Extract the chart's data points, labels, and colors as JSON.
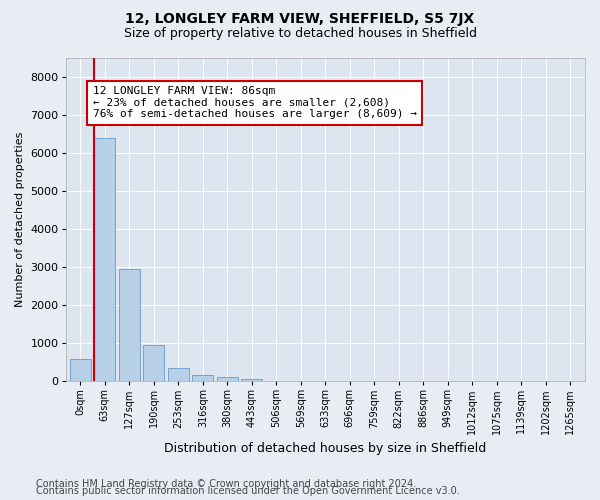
{
  "title": "12, LONGLEY FARM VIEW, SHEFFIELD, S5 7JX",
  "subtitle": "Size of property relative to detached houses in Sheffield",
  "xlabel": "Distribution of detached houses by size in Sheffield",
  "ylabel": "Number of detached properties",
  "categories": [
    "0sqm",
    "63sqm",
    "127sqm",
    "190sqm",
    "253sqm",
    "316sqm",
    "380sqm",
    "443sqm",
    "506sqm",
    "569sqm",
    "633sqm",
    "696sqm",
    "759sqm",
    "822sqm",
    "886sqm",
    "949sqm",
    "1012sqm",
    "1075sqm",
    "1139sqm",
    "1202sqm",
    "1265sqm"
  ],
  "bar_heights": [
    580,
    6380,
    2950,
    960,
    360,
    165,
    100,
    70,
    0,
    0,
    0,
    0,
    0,
    0,
    0,
    0,
    0,
    0,
    0,
    0,
    0
  ],
  "bar_color": "#b8cfe8",
  "bar_edge_color": "#6699cc",
  "ylim": [
    0,
    8500
  ],
  "yticks": [
    0,
    1000,
    2000,
    3000,
    4000,
    5000,
    6000,
    7000,
    8000
  ],
  "property_line_color": "#cc0000",
  "annotation_text": "12 LONGLEY FARM VIEW: 86sqm\n← 23% of detached houses are smaller (2,608)\n76% of semi-detached houses are larger (8,609) →",
  "annotation_box_facecolor": "#ffffff",
  "annotation_box_edgecolor": "#cc0000",
  "background_color": "#e8edf4",
  "plot_bg_color": "#dce5f0",
  "grid_color": "#ffffff",
  "footer_line1": "Contains HM Land Registry data © Crown copyright and database right 2024.",
  "footer_line2": "Contains public sector information licensed under the Open Government Licence v3.0.",
  "title_fontsize": 10,
  "subtitle_fontsize": 9,
  "ylabel_fontsize": 8,
  "xlabel_fontsize": 9,
  "tick_fontsize": 7,
  "ytick_fontsize": 8,
  "annotation_fontsize": 8,
  "footer_fontsize": 7
}
